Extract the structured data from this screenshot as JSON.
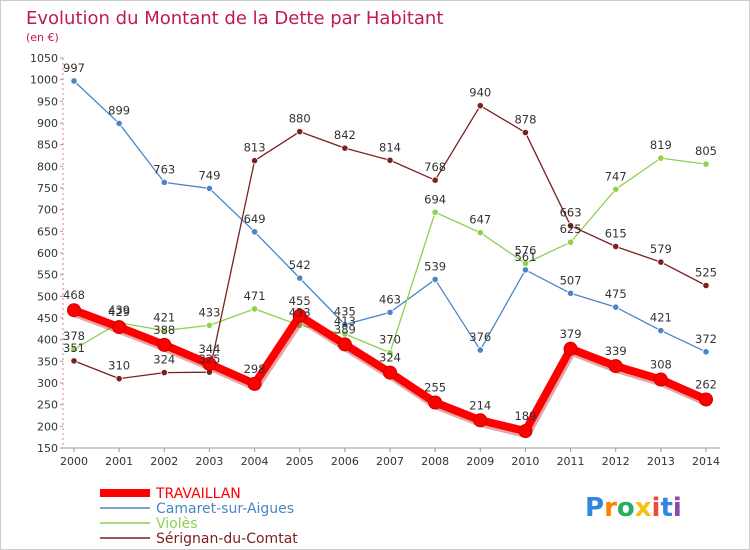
{
  "chart_data": {
    "type": "line",
    "title": "Evolution du Montant de la Dette par Habitant",
    "subtitle": "(en €)",
    "x": [
      "2000",
      "2001",
      "2002",
      "2003",
      "2004",
      "2005",
      "2006",
      "2007",
      "2008",
      "2009",
      "2010",
      "2011",
      "2012",
      "2013",
      "2014"
    ],
    "ylim": [
      150,
      1050
    ],
    "yticks": [
      150,
      200,
      250,
      300,
      350,
      400,
      450,
      500,
      550,
      600,
      650,
      700,
      750,
      800,
      850,
      900,
      950,
      1000,
      1050
    ],
    "grid": false,
    "legend_position": "bottom-left",
    "series": [
      {
        "name": "TRAVAILLAN",
        "color": "#ff0000",
        "values": [
          468,
          429,
          388,
          344,
          298,
          455,
          389,
          324,
          255,
          214,
          189,
          379,
          339,
          308,
          262
        ],
        "labels": [
          "468",
          "429",
          "388",
          "344",
          "298",
          "455",
          "389",
          "324",
          "255",
          "214",
          "189",
          "379",
          "339",
          "308",
          "262"
        ]
      },
      {
        "name": "Camaret-sur-Aigues",
        "color": "#4a86c5",
        "values": [
          997,
          899,
          763,
          749,
          649,
          542,
          435,
          463,
          539,
          376,
          561,
          507,
          475,
          421,
          372
        ],
        "labels": [
          "997",
          "899",
          "763",
          "749",
          "649",
          "542",
          "435",
          "463",
          "539",
          "376",
          "561",
          "507",
          "475",
          "421",
          "372"
        ]
      },
      {
        "name": "Violès",
        "color": "#8fd14f",
        "values": [
          378,
          439,
          421,
          433,
          471,
          433,
          413,
          370,
          694,
          647,
          576,
          625,
          747,
          819,
          805
        ],
        "labels": [
          "378",
          "439",
          "421",
          "433",
          "471",
          "433",
          "413",
          "370",
          "694",
          "647",
          "576",
          "625",
          "747",
          "819",
          "805"
        ]
      },
      {
        "name": "Sérignan-du-Comtat",
        "color": "#7b1f1f",
        "values": [
          351,
          310,
          324,
          325,
          813,
          880,
          842,
          814,
          768,
          940,
          878,
          663,
          615,
          579,
          525
        ],
        "labels": [
          "351",
          "310",
          "324",
          "325",
          "813",
          "880",
          "842",
          "814",
          "768",
          "940",
          "878",
          "663",
          "615",
          "579",
          "525"
        ]
      }
    ]
  },
  "logo": {
    "text": "Proxiti",
    "letter_colors": [
      "#2e86de",
      "#ff7f00",
      "#27ae60",
      "#f1c40f",
      "#e74c3c",
      "#2e86de",
      "#8e44ad"
    ]
  }
}
